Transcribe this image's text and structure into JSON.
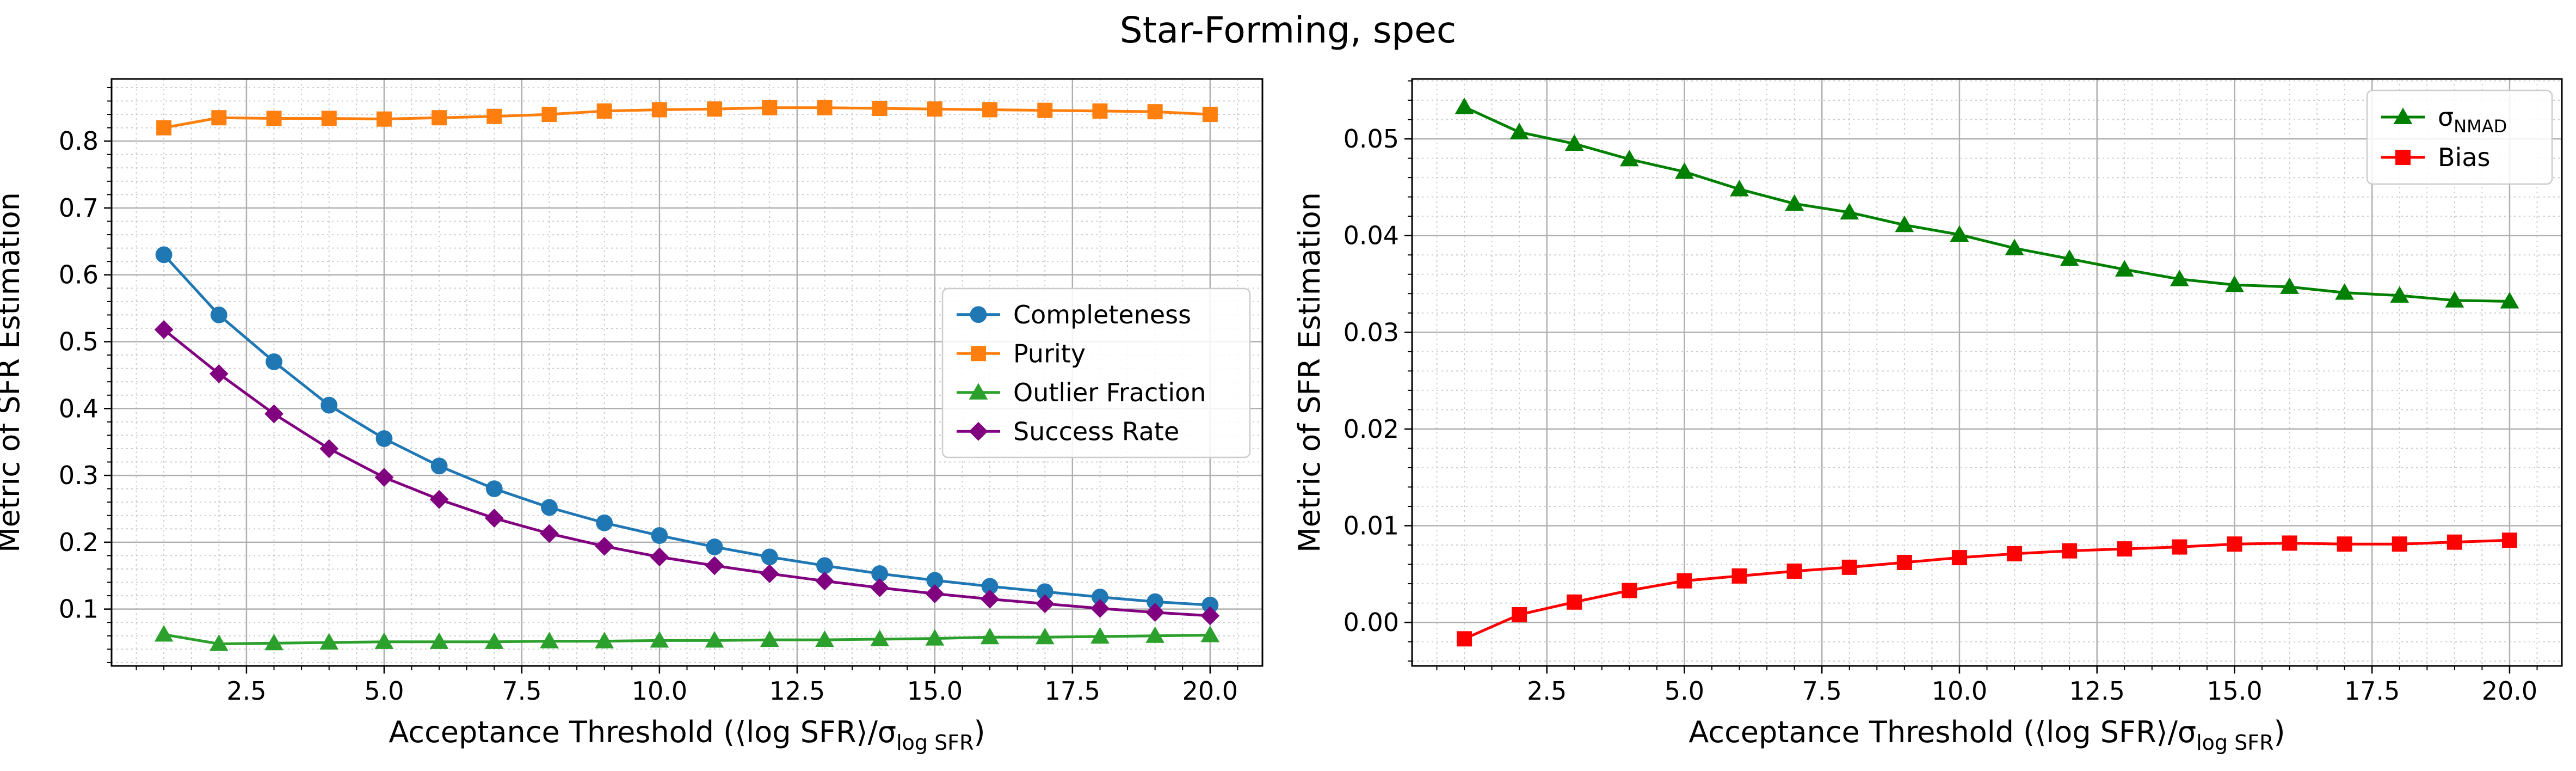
{
  "figure": {
    "title": "Star-Forming, spec"
  },
  "chart_data": [
    {
      "type": "line",
      "xlabel": "Acceptance Threshold (⟨log SFR⟩/σ",
      "xlabel_sub": "log SFR",
      "xlabel_end": ")",
      "ylabel": "Metric of SFR Estimation",
      "x": [
        1,
        2,
        3,
        4,
        5,
        6,
        7,
        8,
        9,
        10,
        11,
        12,
        13,
        14,
        15,
        16,
        17,
        18,
        19,
        20
      ],
      "xlim": [
        0.05,
        20.95
      ],
      "ylim": [
        0.015,
        0.893
      ],
      "xticks": [
        2.5,
        5.0,
        7.5,
        10.0,
        12.5,
        15.0,
        17.5,
        20.0
      ],
      "xtick_labels": [
        "2.5",
        "5.0",
        "7.5",
        "10.0",
        "12.5",
        "15.0",
        "17.5",
        "20.0"
      ],
      "yticks": [
        0.1,
        0.2,
        0.3,
        0.4,
        0.5,
        0.6,
        0.7,
        0.8
      ],
      "ytick_labels": [
        "0.1",
        "0.2",
        "0.3",
        "0.4",
        "0.5",
        "0.6",
        "0.7",
        "0.8"
      ],
      "grid": true,
      "legend_position": "center-right",
      "series": [
        {
          "name": "Completeness",
          "color": "#1f77b4",
          "marker": "circle",
          "values": [
            0.63,
            0.54,
            0.47,
            0.405,
            0.355,
            0.314,
            0.28,
            0.252,
            0.229,
            0.21,
            0.193,
            0.178,
            0.165,
            0.153,
            0.143,
            0.134,
            0.126,
            0.118,
            0.111,
            0.106
          ]
        },
        {
          "name": "Purity",
          "color": "#ff7f0e",
          "marker": "square",
          "values": [
            0.82,
            0.835,
            0.834,
            0.834,
            0.833,
            0.835,
            0.837,
            0.84,
            0.845,
            0.847,
            0.848,
            0.85,
            0.85,
            0.849,
            0.848,
            0.847,
            0.846,
            0.845,
            0.844,
            0.84
          ]
        },
        {
          "name": "Outlier Fraction",
          "color": "#2ca02c",
          "marker": "triangle",
          "values": [
            0.062,
            0.048,
            0.049,
            0.05,
            0.051,
            0.051,
            0.051,
            0.052,
            0.052,
            0.053,
            0.053,
            0.054,
            0.054,
            0.055,
            0.056,
            0.058,
            0.058,
            0.059,
            0.06,
            0.061
          ]
        },
        {
          "name": "Success Rate",
          "color": "#800080",
          "marker": "diamond",
          "values": [
            0.518,
            0.452,
            0.392,
            0.34,
            0.297,
            0.264,
            0.236,
            0.213,
            0.194,
            0.178,
            0.165,
            0.153,
            0.142,
            0.132,
            0.123,
            0.115,
            0.108,
            0.101,
            0.095,
            0.09
          ]
        }
      ]
    },
    {
      "type": "line",
      "xlabel": "Acceptance Threshold (⟨log SFR⟩/σ",
      "xlabel_sub": "log SFR",
      "xlabel_end": ")",
      "ylabel": "Metric of SFR Estimation",
      "x": [
        1,
        2,
        3,
        4,
        5,
        6,
        7,
        8,
        9,
        10,
        11,
        12,
        13,
        14,
        15,
        16,
        17,
        18,
        19,
        20
      ],
      "xlim": [
        0.05,
        20.95
      ],
      "ylim": [
        -0.0045,
        0.0562
      ],
      "xticks": [
        2.5,
        5.0,
        7.5,
        10.0,
        12.5,
        15.0,
        17.5,
        20.0
      ],
      "xtick_labels": [
        "2.5",
        "5.0",
        "7.5",
        "10.0",
        "12.5",
        "15.0",
        "17.5",
        "20.0"
      ],
      "yticks": [
        0.0,
        0.01,
        0.02,
        0.03,
        0.04,
        0.05
      ],
      "ytick_labels": [
        "0.00",
        "0.01",
        "0.02",
        "0.03",
        "0.04",
        "0.05"
      ],
      "grid": true,
      "legend_position": "top-right",
      "series": [
        {
          "name": "σ",
          "name_sub": "NMAD",
          "color": "#008000",
          "marker": "triangle",
          "values": [
            0.0533,
            0.0507,
            0.0495,
            0.0479,
            0.0466,
            0.0448,
            0.0433,
            0.0424,
            0.0411,
            0.0401,
            0.0387,
            0.0376,
            0.0365,
            0.0355,
            0.0349,
            0.0347,
            0.0341,
            0.0338,
            0.0333,
            0.0332
          ]
        },
        {
          "name": "Bias",
          "color": "#ff0000",
          "marker": "square",
          "values": [
            -0.0017,
            0.0008,
            0.0021,
            0.0033,
            0.0043,
            0.0048,
            0.0053,
            0.0057,
            0.0062,
            0.0067,
            0.0071,
            0.0074,
            0.0076,
            0.0078,
            0.0081,
            0.0082,
            0.0081,
            0.0081,
            0.0083,
            0.0085
          ]
        }
      ]
    }
  ]
}
